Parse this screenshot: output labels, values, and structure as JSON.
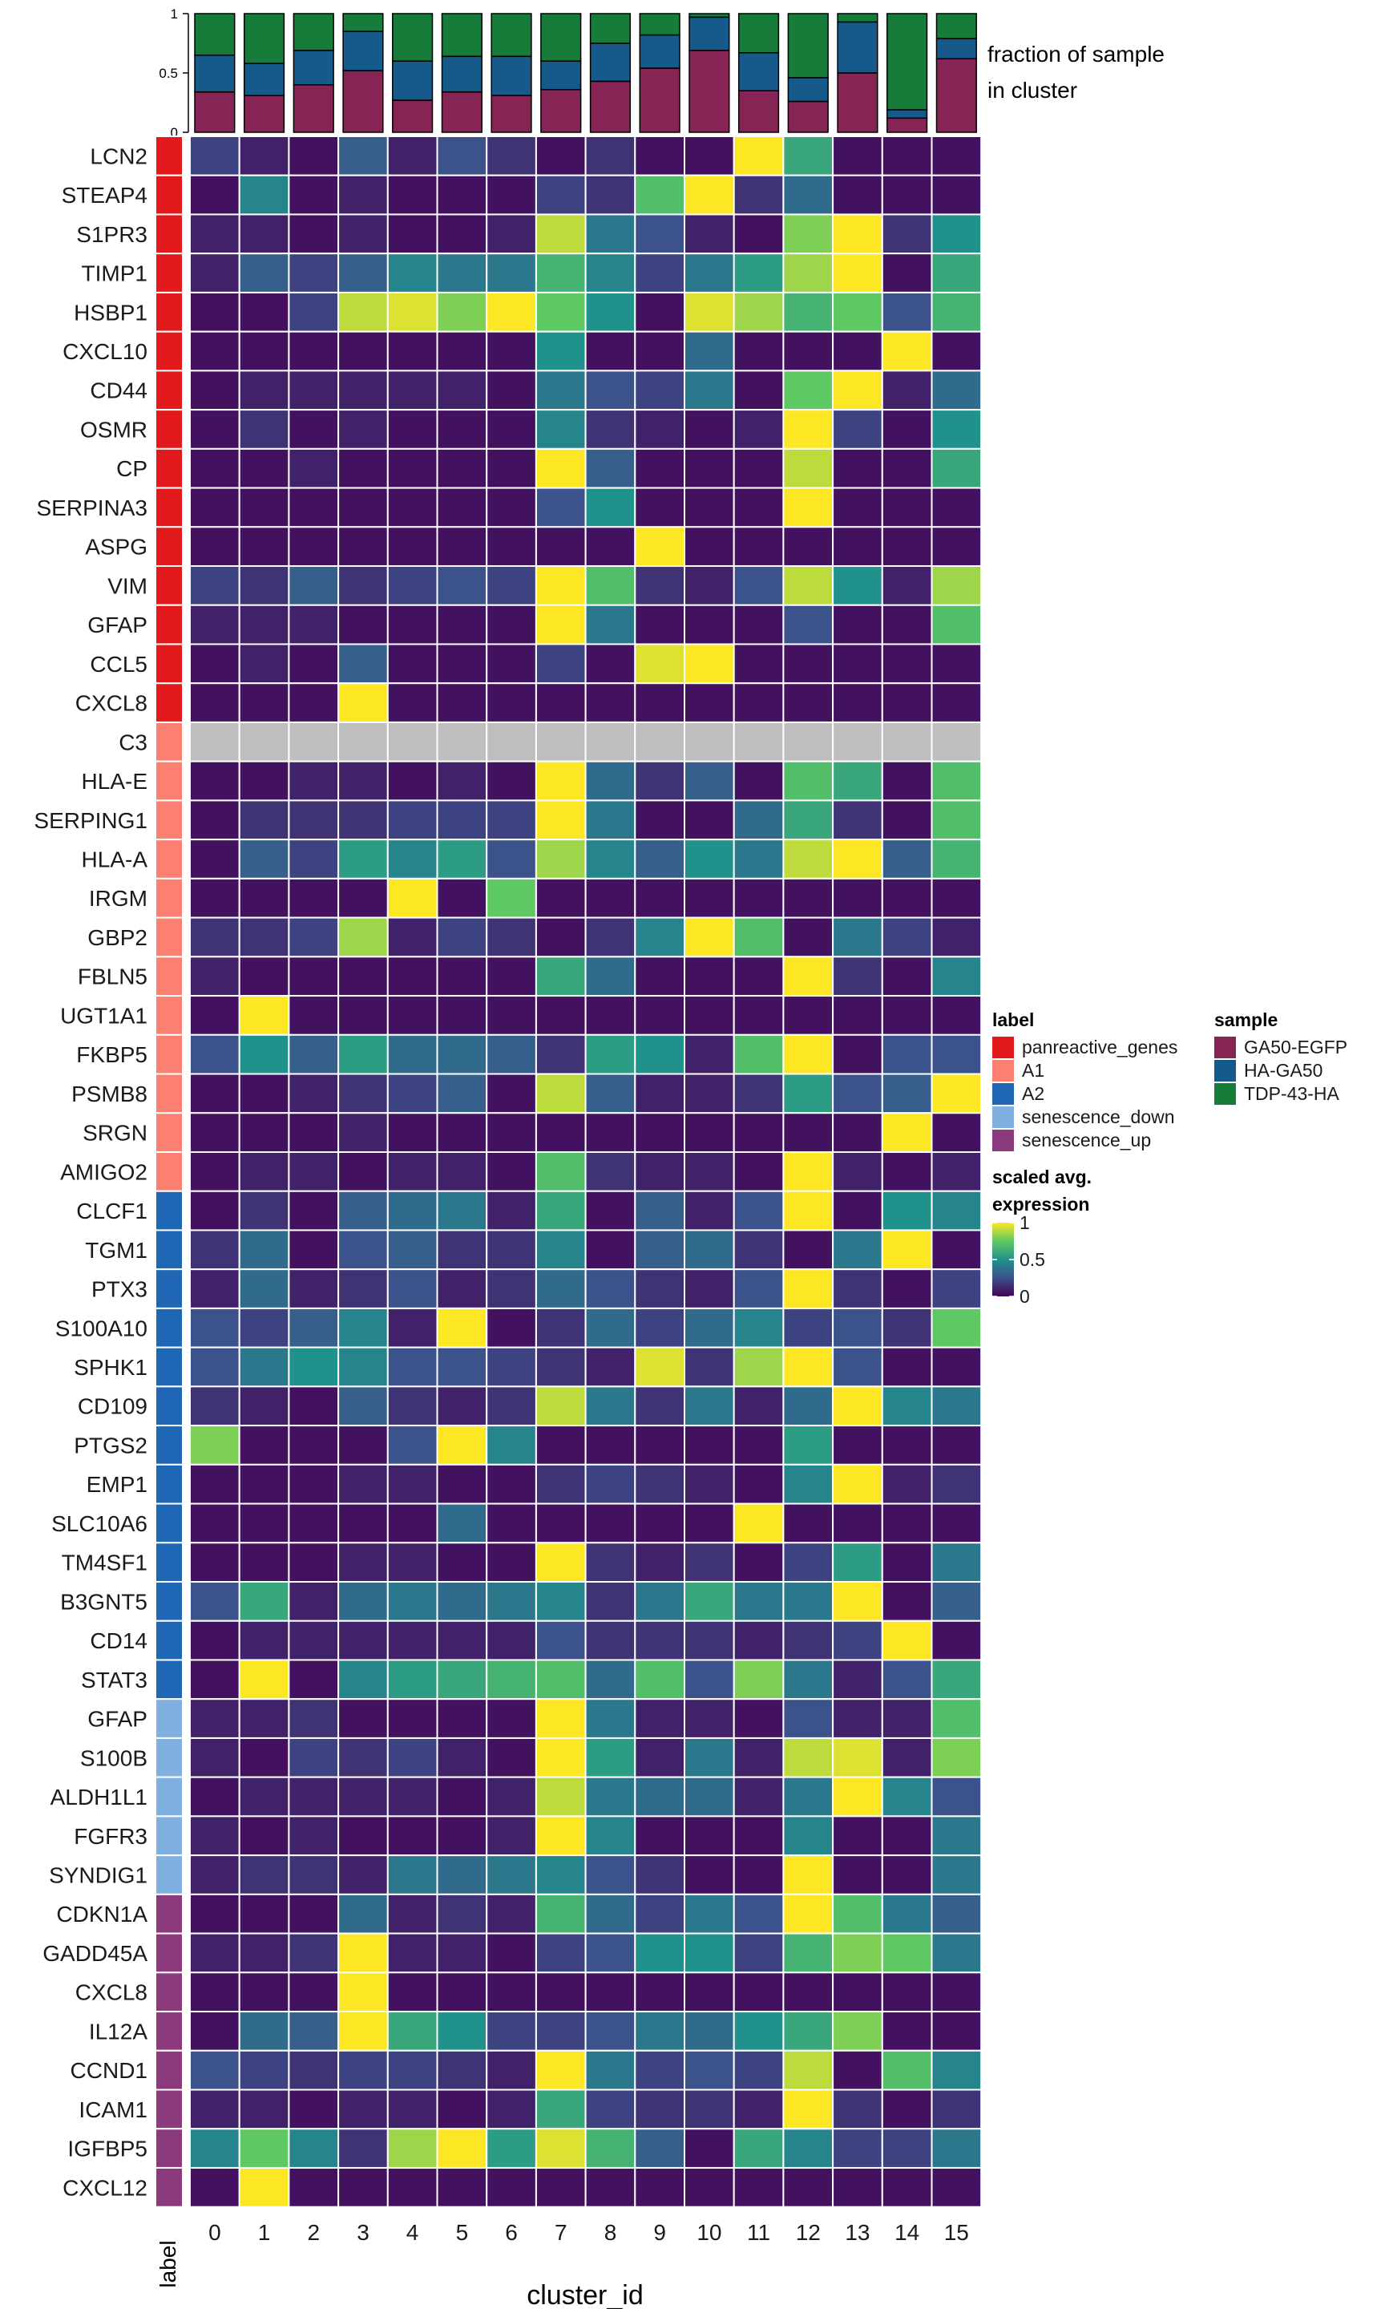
{
  "chart_data": {
    "type": "heatmap",
    "xlabel": "cluster_id",
    "row_annotation_label": "label",
    "clusters": [
      "0",
      "1",
      "2",
      "3",
      "4",
      "5",
      "6",
      "7",
      "8",
      "9",
      "10",
      "11",
      "12",
      "13",
      "14",
      "15"
    ],
    "genes": [
      "LCN2",
      "STEAP4",
      "S1PR3",
      "TIMP1",
      "HSBP1",
      "CXCL10",
      "CD44",
      "OSMR",
      "CP",
      "SERPINA3",
      "ASPG",
      "VIM",
      "GFAP",
      "CCL5",
      "CXCL8",
      "C3",
      "HLA-E",
      "SERPING1",
      "HLA-A",
      "IRGM",
      "GBP2",
      "FBLN5",
      "UGT1A1",
      "FKBP5",
      "PSMB8",
      "SRGN",
      "AMIGO2",
      "CLCF1",
      "TGM1",
      "PTX3",
      "S100A10",
      "SPHK1",
      "CD109",
      "PTGS2",
      "EMP1",
      "SLC10A6",
      "TM4SF1",
      "B3GNT5",
      "CD14",
      "STAT3",
      "GFAP",
      "S100B",
      "ALDH1L1",
      "FGFR3",
      "SYNDIG1",
      "CDKN1A",
      "GADD45A",
      "CXCL8",
      "IL12A",
      "CCND1",
      "ICAM1",
      "IGFBP5",
      "CXCL12"
    ],
    "row_labels": [
      "panreactive_genes",
      "panreactive_genes",
      "panreactive_genes",
      "panreactive_genes",
      "panreactive_genes",
      "panreactive_genes",
      "panreactive_genes",
      "panreactive_genes",
      "panreactive_genes",
      "panreactive_genes",
      "panreactive_genes",
      "panreactive_genes",
      "panreactive_genes",
      "panreactive_genes",
      "panreactive_genes",
      "A1",
      "A1",
      "A1",
      "A1",
      "A1",
      "A1",
      "A1",
      "A1",
      "A1",
      "A1",
      "A1",
      "A1",
      "A2",
      "A2",
      "A2",
      "A2",
      "A2",
      "A2",
      "A2",
      "A2",
      "A2",
      "A2",
      "A2",
      "A2",
      "A2",
      "senescence_down",
      "senescence_down",
      "senescence_down",
      "senescence_down",
      "senescence_down",
      "senescence_up",
      "senescence_up",
      "senescence_up",
      "senescence_up",
      "senescence_up",
      "senescence_up",
      "senescence_up",
      "senescence_up"
    ],
    "values": [
      [
        0.2,
        0.1,
        0.05,
        0.3,
        0.1,
        0.25,
        0.15,
        0.05,
        0.15,
        0.05,
        0.05,
        1.0,
        0.6,
        0.05,
        0.05,
        0.05
      ],
      [
        0.05,
        0.45,
        0.05,
        0.1,
        0.05,
        0.05,
        0.05,
        0.2,
        0.15,
        0.7,
        1.0,
        0.15,
        0.35,
        0.05,
        0.05,
        0.05
      ],
      [
        0.1,
        0.1,
        0.05,
        0.1,
        0.05,
        0.05,
        0.1,
        0.9,
        0.4,
        0.25,
        0.1,
        0.05,
        0.8,
        1.0,
        0.15,
        0.5
      ],
      [
        0.1,
        0.3,
        0.2,
        0.3,
        0.45,
        0.4,
        0.4,
        0.65,
        0.45,
        0.2,
        0.4,
        0.55,
        0.85,
        1.0,
        0.05,
        0.6
      ],
      [
        0.05,
        0.05,
        0.2,
        0.9,
        0.95,
        0.8,
        1.0,
        0.75,
        0.5,
        0.05,
        0.95,
        0.85,
        0.65,
        0.75,
        0.25,
        0.65
      ],
      [
        0.05,
        0.05,
        0.05,
        0.05,
        0.05,
        0.05,
        0.05,
        0.5,
        0.05,
        0.05,
        0.35,
        0.05,
        0.05,
        0.05,
        1.0,
        0.05
      ],
      [
        0.05,
        0.1,
        0.1,
        0.1,
        0.1,
        0.1,
        0.05,
        0.4,
        0.25,
        0.2,
        0.4,
        0.05,
        0.75,
        1.0,
        0.1,
        0.35
      ],
      [
        0.05,
        0.15,
        0.05,
        0.1,
        0.05,
        0.05,
        0.05,
        0.45,
        0.15,
        0.1,
        0.05,
        0.1,
        1.0,
        0.2,
        0.05,
        0.5
      ],
      [
        0.05,
        0.05,
        0.1,
        0.05,
        0.05,
        0.05,
        0.05,
        1.0,
        0.3,
        0.05,
        0.05,
        0.05,
        0.9,
        0.05,
        0.05,
        0.6
      ],
      [
        0.05,
        0.05,
        0.05,
        0.05,
        0.05,
        0.05,
        0.05,
        0.25,
        0.5,
        0.05,
        0.05,
        0.05,
        1.0,
        0.05,
        0.05,
        0.05
      ],
      [
        0.05,
        0.05,
        0.05,
        0.05,
        0.05,
        0.05,
        0.05,
        0.05,
        0.05,
        1.0,
        0.05,
        0.05,
        0.05,
        0.05,
        0.05,
        0.05
      ],
      [
        0.2,
        0.15,
        0.3,
        0.15,
        0.2,
        0.25,
        0.2,
        1.0,
        0.7,
        0.15,
        0.1,
        0.25,
        0.9,
        0.5,
        0.1,
        0.85
      ],
      [
        0.1,
        0.1,
        0.1,
        0.05,
        0.05,
        0.05,
        0.05,
        1.0,
        0.4,
        0.05,
        0.05,
        0.05,
        0.25,
        0.05,
        0.05,
        0.7
      ],
      [
        0.05,
        0.1,
        0.05,
        0.3,
        0.05,
        0.05,
        0.05,
        0.2,
        0.05,
        0.95,
        1.0,
        0.05,
        0.05,
        0.05,
        0.05,
        0.05
      ],
      [
        0.05,
        0.05,
        0.05,
        1.0,
        0.05,
        0.05,
        0.05,
        0.05,
        0.05,
        0.05,
        0.05,
        0.05,
        0.05,
        0.05,
        0.05,
        0.05
      ],
      [
        null,
        null,
        null,
        null,
        null,
        null,
        null,
        null,
        null,
        null,
        null,
        null,
        null,
        null,
        null,
        null
      ],
      [
        0.05,
        0.05,
        0.1,
        0.1,
        0.05,
        0.1,
        0.05,
        1.0,
        0.35,
        0.15,
        0.3,
        0.05,
        0.7,
        0.6,
        0.05,
        0.7
      ],
      [
        0.05,
        0.15,
        0.15,
        0.15,
        0.2,
        0.2,
        0.2,
        1.0,
        0.4,
        0.05,
        0.05,
        0.35,
        0.6,
        0.15,
        0.05,
        0.7
      ],
      [
        0.05,
        0.3,
        0.2,
        0.55,
        0.45,
        0.55,
        0.25,
        0.85,
        0.45,
        0.3,
        0.5,
        0.4,
        0.9,
        1.0,
        0.3,
        0.65
      ],
      [
        0.05,
        0.05,
        0.05,
        0.05,
        1.0,
        0.05,
        0.75,
        0.05,
        0.05,
        0.05,
        0.05,
        0.05,
        0.05,
        0.05,
        0.05,
        0.05
      ],
      [
        0.15,
        0.15,
        0.2,
        0.85,
        0.1,
        0.2,
        0.15,
        0.05,
        0.15,
        0.45,
        1.0,
        0.7,
        0.05,
        0.4,
        0.2,
        0.1
      ],
      [
        0.1,
        0.05,
        0.05,
        0.05,
        0.05,
        0.05,
        0.05,
        0.6,
        0.35,
        0.05,
        0.05,
        0.05,
        1.0,
        0.15,
        0.05,
        0.45
      ],
      [
        0.05,
        1.0,
        0.05,
        0.05,
        0.05,
        0.05,
        0.05,
        0.05,
        0.05,
        0.05,
        0.05,
        0.05,
        0.05,
        0.05,
        0.05,
        0.05
      ],
      [
        0.25,
        0.5,
        0.3,
        0.55,
        0.35,
        0.35,
        0.3,
        0.15,
        0.55,
        0.5,
        0.1,
        0.7,
        1.0,
        0.05,
        0.25,
        0.25
      ],
      [
        0.05,
        0.05,
        0.1,
        0.15,
        0.2,
        0.3,
        0.05,
        0.9,
        0.3,
        0.1,
        0.1,
        0.15,
        0.55,
        0.25,
        0.3,
        1.0
      ],
      [
        0.05,
        0.05,
        0.05,
        0.1,
        0.05,
        0.05,
        0.05,
        0.05,
        0.05,
        0.05,
        0.05,
        0.05,
        0.05,
        0.05,
        1.0,
        0.05
      ],
      [
        0.05,
        0.1,
        0.1,
        0.05,
        0.1,
        0.1,
        0.05,
        0.7,
        0.15,
        0.1,
        0.1,
        0.05,
        1.0,
        0.1,
        0.05,
        0.1
      ],
      [
        0.05,
        0.15,
        0.05,
        0.3,
        0.35,
        0.4,
        0.1,
        0.6,
        0.05,
        0.3,
        0.1,
        0.25,
        1.0,
        0.05,
        0.5,
        0.45
      ],
      [
        0.15,
        0.35,
        0.05,
        0.25,
        0.3,
        0.15,
        0.15,
        0.45,
        0.05,
        0.3,
        0.35,
        0.15,
        0.05,
        0.4,
        1.0,
        0.05
      ],
      [
        0.1,
        0.35,
        0.1,
        0.15,
        0.25,
        0.1,
        0.15,
        0.35,
        0.25,
        0.15,
        0.1,
        0.25,
        1.0,
        0.15,
        0.05,
        0.2
      ],
      [
        0.25,
        0.2,
        0.3,
        0.45,
        0.1,
        1.0,
        0.05,
        0.15,
        0.35,
        0.2,
        0.35,
        0.45,
        0.2,
        0.25,
        0.15,
        0.75
      ],
      [
        0.25,
        0.4,
        0.5,
        0.45,
        0.25,
        0.25,
        0.2,
        0.15,
        0.1,
        0.95,
        0.15,
        0.85,
        1.0,
        0.25,
        0.05,
        0.05
      ],
      [
        0.15,
        0.1,
        0.05,
        0.3,
        0.15,
        0.1,
        0.15,
        0.9,
        0.4,
        0.15,
        0.4,
        0.1,
        0.35,
        1.0,
        0.45,
        0.4
      ],
      [
        0.8,
        0.05,
        0.05,
        0.05,
        0.25,
        1.0,
        0.45,
        0.05,
        0.05,
        0.05,
        0.05,
        0.05,
        0.55,
        0.05,
        0.05,
        0.05
      ],
      [
        0.05,
        0.05,
        0.05,
        0.1,
        0.1,
        0.05,
        0.05,
        0.15,
        0.2,
        0.15,
        0.1,
        0.05,
        0.45,
        1.0,
        0.1,
        0.15
      ],
      [
        0.05,
        0.05,
        0.05,
        0.05,
        0.05,
        0.35,
        0.05,
        0.05,
        0.05,
        0.05,
        0.05,
        1.0,
        0.05,
        0.05,
        0.05,
        0.05
      ],
      [
        0.05,
        0.05,
        0.05,
        0.1,
        0.1,
        0.05,
        0.05,
        1.0,
        0.15,
        0.1,
        0.15,
        0.05,
        0.2,
        0.55,
        0.05,
        0.4
      ],
      [
        0.25,
        0.6,
        0.1,
        0.35,
        0.4,
        0.35,
        0.4,
        0.45,
        0.15,
        0.4,
        0.6,
        0.4,
        0.4,
        1.0,
        0.05,
        0.3
      ],
      [
        0.05,
        0.1,
        0.1,
        0.1,
        0.1,
        0.1,
        0.1,
        0.25,
        0.15,
        0.15,
        0.15,
        0.1,
        0.15,
        0.2,
        1.0,
        0.05
      ],
      [
        0.05,
        1.0,
        0.05,
        0.45,
        0.55,
        0.6,
        0.65,
        0.7,
        0.35,
        0.7,
        0.25,
        0.8,
        0.4,
        0.1,
        0.25,
        0.6
      ],
      [
        0.1,
        0.1,
        0.15,
        0.05,
        0.05,
        0.05,
        0.05,
        1.0,
        0.4,
        0.1,
        0.1,
        0.05,
        0.25,
        0.1,
        0.1,
        0.7
      ],
      [
        0.1,
        0.05,
        0.2,
        0.15,
        0.2,
        0.1,
        0.05,
        1.0,
        0.55,
        0.1,
        0.4,
        0.1,
        0.9,
        0.95,
        0.1,
        0.8
      ],
      [
        0.05,
        0.1,
        0.1,
        0.1,
        0.1,
        0.05,
        0.1,
        0.9,
        0.4,
        0.35,
        0.35,
        0.1,
        0.4,
        1.0,
        0.45,
        0.25
      ],
      [
        0.1,
        0.05,
        0.1,
        0.05,
        0.05,
        0.05,
        0.1,
        1.0,
        0.45,
        0.05,
        0.05,
        0.05,
        0.45,
        0.05,
        0.05,
        0.4
      ],
      [
        0.1,
        0.15,
        0.15,
        0.1,
        0.4,
        0.35,
        0.4,
        0.45,
        0.25,
        0.15,
        0.05,
        0.05,
        1.0,
        0.05,
        0.05,
        0.4
      ],
      [
        0.05,
        0.05,
        0.05,
        0.35,
        0.1,
        0.15,
        0.1,
        0.65,
        0.35,
        0.2,
        0.4,
        0.25,
        1.0,
        0.7,
        0.4,
        0.3
      ],
      [
        0.1,
        0.1,
        0.15,
        1.0,
        0.1,
        0.1,
        0.05,
        0.2,
        0.25,
        0.5,
        0.5,
        0.2,
        0.65,
        0.8,
        0.75,
        0.4
      ],
      [
        0.05,
        0.05,
        0.05,
        1.0,
        0.05,
        0.05,
        0.05,
        0.05,
        0.05,
        0.05,
        0.05,
        0.05,
        0.05,
        0.05,
        0.05,
        0.05
      ],
      [
        0.05,
        0.35,
        0.3,
        1.0,
        0.6,
        0.5,
        0.2,
        0.2,
        0.25,
        0.4,
        0.35,
        0.5,
        0.6,
        0.8,
        0.05,
        0.05
      ],
      [
        0.25,
        0.2,
        0.15,
        0.2,
        0.2,
        0.15,
        0.1,
        1.0,
        0.4,
        0.2,
        0.25,
        0.2,
        0.9,
        0.05,
        0.7,
        0.45
      ],
      [
        0.1,
        0.1,
        0.05,
        0.1,
        0.1,
        0.05,
        0.1,
        0.6,
        0.2,
        0.15,
        0.15,
        0.1,
        1.0,
        0.15,
        0.05,
        0.15
      ],
      [
        0.45,
        0.75,
        0.45,
        0.15,
        0.85,
        1.0,
        0.55,
        0.95,
        0.65,
        0.3,
        0.05,
        0.6,
        0.45,
        0.2,
        0.2,
        0.4
      ],
      [
        0.05,
        1.0,
        0.05,
        0.05,
        0.05,
        0.05,
        0.05,
        0.05,
        0.05,
        0.05,
        0.05,
        0.05,
        0.05,
        0.05,
        0.05,
        0.05
      ]
    ],
    "fraction_of_sample": {
      "title_line1": "fraction of sample",
      "title_line2": "in cluster",
      "ticks": [
        "0",
        "0.5",
        "1"
      ],
      "GA50-EGFP": [
        0.34,
        0.31,
        0.4,
        0.52,
        0.27,
        0.34,
        0.31,
        0.36,
        0.43,
        0.54,
        0.69,
        0.35,
        0.26,
        0.5,
        0.12,
        0.62
      ],
      "HA-GA50": [
        0.31,
        0.27,
        0.29,
        0.33,
        0.33,
        0.3,
        0.33,
        0.24,
        0.32,
        0.28,
        0.28,
        0.32,
        0.2,
        0.43,
        0.07,
        0.17
      ],
      "TDP-43-HA": [
        0.35,
        0.42,
        0.31,
        0.15,
        0.4,
        0.36,
        0.36,
        0.4,
        0.25,
        0.18,
        0.03,
        0.33,
        0.54,
        0.07,
        0.81,
        0.21
      ]
    },
    "legend_label": {
      "title": "label",
      "items": [
        "panreactive_genes",
        "A1",
        "A2",
        "senescence_down",
        "senescence_up"
      ]
    },
    "legend_sample": {
      "title": "sample",
      "items": [
        "GA50-EGFP",
        "HA-GA50",
        "TDP-43-HA"
      ]
    },
    "legend_expression": {
      "title_line1": "scaled avg.",
      "title_line2": "expression",
      "ticks": [
        "1",
        "0.5",
        "0"
      ]
    },
    "colors": {
      "label": {
        "panreactive_genes": "#e31a1c",
        "A1": "#fb8072",
        "A2": "#1f66b5",
        "senescence_down": "#7fb0e0",
        "senescence_up": "#8b3a7d"
      },
      "sample": {
        "GA50-EGFP": "#862455",
        "HA-GA50": "#155a8a",
        "TDP-43-HA": "#177b3a"
      },
      "na": "#bebebe"
    }
  }
}
